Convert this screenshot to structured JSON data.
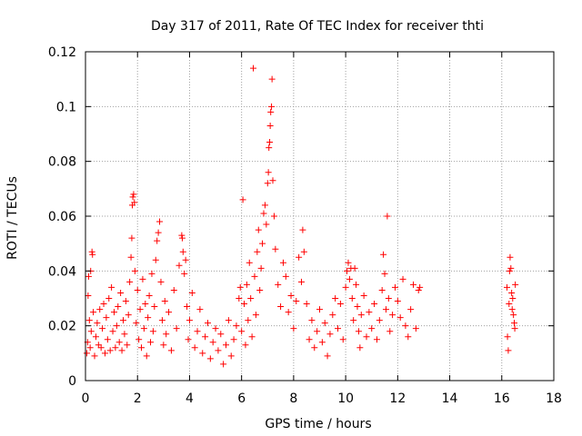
{
  "chart_data": {
    "type": "scatter",
    "title": "Day 317 of 2011, Rate Of TEC Index for receiver thti",
    "xlabel": "GPS time / hours",
    "ylabel": "ROTI / TECUs",
    "xlim": [
      0,
      18
    ],
    "ylim": [
      0,
      0.12
    ],
    "xticks": [
      0,
      2,
      4,
      6,
      8,
      10,
      12,
      14,
      16,
      18
    ],
    "xtick_labels": [
      "0",
      "2",
      "4",
      "6",
      "8",
      "10",
      "12",
      "14",
      "16",
      "18"
    ],
    "yticks": [
      0,
      0.02,
      0.04,
      0.06,
      0.08,
      0.1,
      0.12
    ],
    "ytick_labels": [
      "0",
      "0.02",
      "0.04",
      "0.06",
      "0.08",
      "0.1",
      "0.12"
    ],
    "grid": true,
    "marker": "+",
    "color": "#ff0000",
    "series": [
      {
        "name": "ROTI",
        "points": [
          [
            0.05,
            0.01
          ],
          [
            0.08,
            0.014
          ],
          [
            0.1,
            0.031
          ],
          [
            0.12,
            0.038
          ],
          [
            0.15,
            0.022
          ],
          [
            0.18,
            0.012
          ],
          [
            0.2,
            0.04
          ],
          [
            0.22,
            0.018
          ],
          [
            0.25,
            0.047
          ],
          [
            0.27,
            0.046
          ],
          [
            0.3,
            0.025
          ],
          [
            0.35,
            0.009
          ],
          [
            0.4,
            0.016
          ],
          [
            0.45,
            0.021
          ],
          [
            0.5,
            0.013
          ],
          [
            0.55,
            0.026
          ],
          [
            0.6,
            0.012
          ],
          [
            0.65,
            0.019
          ],
          [
            0.7,
            0.028
          ],
          [
            0.75,
            0.01
          ],
          [
            0.8,
            0.023
          ],
          [
            0.85,
            0.015
          ],
          [
            0.9,
            0.03
          ],
          [
            0.95,
            0.011
          ],
          [
            1.0,
            0.034
          ],
          [
            1.05,
            0.018
          ],
          [
            1.1,
            0.025
          ],
          [
            1.15,
            0.012
          ],
          [
            1.2,
            0.02
          ],
          [
            1.25,
            0.027
          ],
          [
            1.3,
            0.014
          ],
          [
            1.35,
            0.032
          ],
          [
            1.4,
            0.011
          ],
          [
            1.45,
            0.022
          ],
          [
            1.5,
            0.017
          ],
          [
            1.55,
            0.029
          ],
          [
            1.6,
            0.013
          ],
          [
            1.65,
            0.024
          ],
          [
            1.7,
            0.036
          ],
          [
            1.75,
            0.045
          ],
          [
            1.78,
            0.052
          ],
          [
            1.8,
            0.064
          ],
          [
            1.82,
            0.067
          ],
          [
            1.85,
            0.068
          ],
          [
            1.88,
            0.065
          ],
          [
            1.9,
            0.04
          ],
          [
            1.95,
            0.021
          ],
          [
            2.0,
            0.033
          ],
          [
            2.05,
            0.015
          ],
          [
            2.1,
            0.026
          ],
          [
            2.15,
            0.012
          ],
          [
            2.2,
            0.037
          ],
          [
            2.25,
            0.019
          ],
          [
            2.3,
            0.028
          ],
          [
            2.35,
            0.009
          ],
          [
            2.4,
            0.023
          ],
          [
            2.45,
            0.031
          ],
          [
            2.5,
            0.014
          ],
          [
            2.55,
            0.039
          ],
          [
            2.6,
            0.018
          ],
          [
            2.65,
            0.027
          ],
          [
            2.7,
            0.044
          ],
          [
            2.75,
            0.051
          ],
          [
            2.8,
            0.054
          ],
          [
            2.85,
            0.058
          ],
          [
            2.9,
            0.036
          ],
          [
            2.95,
            0.022
          ],
          [
            3.0,
            0.013
          ],
          [
            3.05,
            0.029
          ],
          [
            3.1,
            0.017
          ],
          [
            3.2,
            0.025
          ],
          [
            3.3,
            0.011
          ],
          [
            3.4,
            0.033
          ],
          [
            3.5,
            0.019
          ],
          [
            3.6,
            0.042
          ],
          [
            3.7,
            0.053
          ],
          [
            3.72,
            0.052
          ],
          [
            3.75,
            0.047
          ],
          [
            3.8,
            0.039
          ],
          [
            3.85,
            0.044
          ],
          [
            3.9,
            0.027
          ],
          [
            3.95,
            0.015
          ],
          [
            4.0,
            0.022
          ],
          [
            4.1,
            0.032
          ],
          [
            4.2,
            0.012
          ],
          [
            4.3,
            0.018
          ],
          [
            4.4,
            0.026
          ],
          [
            4.5,
            0.01
          ],
          [
            4.6,
            0.016
          ],
          [
            4.7,
            0.021
          ],
          [
            4.8,
            0.008
          ],
          [
            4.9,
            0.014
          ],
          [
            5.0,
            0.019
          ],
          [
            5.1,
            0.011
          ],
          [
            5.2,
            0.017
          ],
          [
            5.3,
            0.006
          ],
          [
            5.4,
            0.013
          ],
          [
            5.5,
            0.022
          ],
          [
            5.6,
            0.009
          ],
          [
            5.7,
            0.015
          ],
          [
            5.8,
            0.02
          ],
          [
            5.9,
            0.03
          ],
          [
            5.95,
            0.034
          ],
          [
            6.0,
            0.018
          ],
          [
            6.05,
            0.066
          ],
          [
            6.1,
            0.028
          ],
          [
            6.15,
            0.013
          ],
          [
            6.2,
            0.035
          ],
          [
            6.25,
            0.022
          ],
          [
            6.3,
            0.043
          ],
          [
            6.35,
            0.03
          ],
          [
            6.4,
            0.016
          ],
          [
            6.45,
            0.114
          ],
          [
            6.5,
            0.038
          ],
          [
            6.55,
            0.024
          ],
          [
            6.6,
            0.047
          ],
          [
            6.65,
            0.055
          ],
          [
            6.7,
            0.033
          ],
          [
            6.75,
            0.041
          ],
          [
            6.8,
            0.05
          ],
          [
            6.85,
            0.061
          ],
          [
            6.9,
            0.064
          ],
          [
            6.95,
            0.057
          ],
          [
            7.0,
            0.072
          ],
          [
            7.03,
            0.076
          ],
          [
            7.05,
            0.085
          ],
          [
            7.08,
            0.087
          ],
          [
            7.1,
            0.093
          ],
          [
            7.12,
            0.098
          ],
          [
            7.15,
            0.1
          ],
          [
            7.17,
            0.11
          ],
          [
            7.2,
            0.073
          ],
          [
            7.25,
            0.06
          ],
          [
            7.3,
            0.048
          ],
          [
            7.4,
            0.035
          ],
          [
            7.5,
            0.027
          ],
          [
            7.6,
            0.043
          ],
          [
            7.7,
            0.038
          ],
          [
            7.8,
            0.025
          ],
          [
            7.9,
            0.031
          ],
          [
            8.0,
            0.019
          ],
          [
            8.1,
            0.029
          ],
          [
            8.2,
            0.045
          ],
          [
            8.3,
            0.036
          ],
          [
            8.35,
            0.055
          ],
          [
            8.4,
            0.047
          ],
          [
            8.5,
            0.028
          ],
          [
            8.6,
            0.015
          ],
          [
            8.7,
            0.022
          ],
          [
            8.8,
            0.012
          ],
          [
            8.9,
            0.018
          ],
          [
            9.0,
            0.026
          ],
          [
            9.1,
            0.014
          ],
          [
            9.2,
            0.021
          ],
          [
            9.3,
            0.009
          ],
          [
            9.4,
            0.017
          ],
          [
            9.5,
            0.024
          ],
          [
            9.6,
            0.03
          ],
          [
            9.7,
            0.019
          ],
          [
            9.8,
            0.028
          ],
          [
            9.9,
            0.015
          ],
          [
            10.0,
            0.034
          ],
          [
            10.05,
            0.04
          ],
          [
            10.1,
            0.043
          ],
          [
            10.15,
            0.037
          ],
          [
            10.2,
            0.041
          ],
          [
            10.25,
            0.03
          ],
          [
            10.3,
            0.022
          ],
          [
            10.35,
            0.041
          ],
          [
            10.4,
            0.035
          ],
          [
            10.45,
            0.027
          ],
          [
            10.5,
            0.018
          ],
          [
            10.55,
            0.012
          ],
          [
            10.6,
            0.024
          ],
          [
            10.7,
            0.031
          ],
          [
            10.8,
            0.016
          ],
          [
            10.9,
            0.025
          ],
          [
            11.0,
            0.019
          ],
          [
            11.1,
            0.028
          ],
          [
            11.2,
            0.015
          ],
          [
            11.3,
            0.022
          ],
          [
            11.4,
            0.033
          ],
          [
            11.45,
            0.046
          ],
          [
            11.5,
            0.039
          ],
          [
            11.55,
            0.026
          ],
          [
            11.6,
            0.06
          ],
          [
            11.65,
            0.03
          ],
          [
            11.7,
            0.018
          ],
          [
            11.8,
            0.024
          ],
          [
            11.9,
            0.034
          ],
          [
            12.0,
            0.029
          ],
          [
            12.1,
            0.023
          ],
          [
            12.2,
            0.037
          ],
          [
            12.3,
            0.02
          ],
          [
            12.4,
            0.016
          ],
          [
            12.5,
            0.026
          ],
          [
            12.6,
            0.035
          ],
          [
            12.7,
            0.019
          ],
          [
            12.8,
            0.033
          ],
          [
            12.85,
            0.034
          ],
          [
            16.2,
            0.034
          ],
          [
            16.22,
            0.016
          ],
          [
            16.25,
            0.011
          ],
          [
            16.28,
            0.028
          ],
          [
            16.3,
            0.04
          ],
          [
            16.32,
            0.045
          ],
          [
            16.35,
            0.041
          ],
          [
            16.38,
            0.032
          ],
          [
            16.4,
            0.026
          ],
          [
            16.42,
            0.03
          ],
          [
            16.45,
            0.024
          ],
          [
            16.48,
            0.021
          ],
          [
            16.5,
            0.019
          ],
          [
            16.52,
            0.035
          ]
        ]
      }
    ]
  }
}
